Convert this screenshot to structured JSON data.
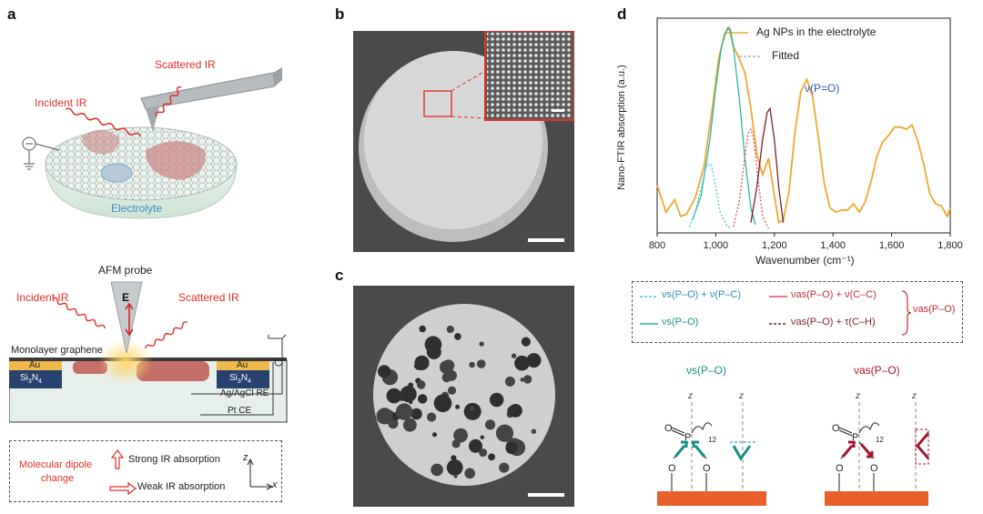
{
  "panels": {
    "a": "a",
    "b": "b",
    "c": "c",
    "d": "d"
  },
  "panel_a": {
    "top": {
      "scattered_ir": "Scattered IR",
      "incident_ir": "Incident IR",
      "electrolyte": "Electrolyte"
    },
    "bottom": {
      "afm_probe": "AFM probe",
      "e_field": "E",
      "incident_ir": "Incident IR",
      "scattered_ir": "Scattered IR",
      "graphene": "Monolayer graphene",
      "au_left": "Au",
      "au_right": "Au",
      "sin_left": "Si3N4",
      "sin_right": "Si3N4",
      "ref_electrode": "Ag/AgCl RE",
      "counter_electrode": "Pt CE"
    },
    "legend": {
      "dipole_label_line1": "Molecular dipole",
      "dipole_label_line2": "change",
      "strong": "Strong IR absorption",
      "weak": "Weak IR absorption",
      "axis_z": "z",
      "axis_x": "x"
    }
  },
  "panel_d": {
    "chart_data": {
      "type": "line",
      "xlabel": "Wavenumber (cm⁻¹)",
      "ylabel": "Nano-FTIR absorption (a.u.)",
      "xlim": [
        800,
        1800
      ],
      "xticks": [
        "800",
        "1,000",
        "1,200",
        "1,400",
        "1,600",
        "1,800"
      ],
      "legend": [
        "Ag NPs in the electrolyte",
        "Fitted"
      ],
      "peak_label": "ν(P=O)",
      "series": [
        {
          "name": "Ag NPs in the electrolyte",
          "color": "#f0a830",
          "x": [
            800,
            830,
            860,
            880,
            900,
            930,
            960,
            990,
            1010,
            1030,
            1045,
            1060,
            1080,
            1100,
            1120,
            1140,
            1160,
            1180,
            1200,
            1215,
            1230,
            1250,
            1270,
            1290,
            1310,
            1330,
            1350,
            1370,
            1390,
            1410,
            1430,
            1450,
            1470,
            1490,
            1510,
            1530,
            1550,
            1570,
            1590,
            1610,
            1630,
            1650,
            1670,
            1690,
            1710,
            1730,
            1750,
            1770,
            1790,
            1800
          ],
          "y": [
            0.23,
            0.1,
            0.16,
            0.08,
            0.09,
            0.17,
            0.32,
            0.62,
            0.84,
            0.96,
            0.99,
            0.9,
            0.84,
            0.77,
            0.6,
            0.38,
            0.28,
            0.36,
            0.18,
            0.05,
            0.06,
            0.2,
            0.48,
            0.68,
            0.74,
            0.66,
            0.46,
            0.24,
            0.12,
            0.1,
            0.11,
            0.11,
            0.14,
            0.1,
            0.15,
            0.25,
            0.37,
            0.44,
            0.47,
            0.51,
            0.51,
            0.5,
            0.52,
            0.44,
            0.33,
            0.19,
            0.14,
            0.13,
            0.08,
            0.12
          ]
        },
        {
          "name": "νs(P–O)",
          "color": "#2bb3a6",
          "x": [
            920,
            950,
            980,
            1000,
            1020,
            1040,
            1050,
            1060,
            1080,
            1100,
            1120,
            1135
          ],
          "y": [
            0.06,
            0.18,
            0.45,
            0.7,
            0.9,
            0.99,
            0.98,
            0.9,
            0.65,
            0.35,
            0.12,
            0.04
          ]
        },
        {
          "name": "νs(P–O) + ν(P–C)",
          "color": "#4fc3d6",
          "dashed": true,
          "x": [
            910,
            930,
            950,
            970,
            985,
            1000,
            1015,
            1035,
            1055
          ],
          "y": [
            0.03,
            0.1,
            0.22,
            0.33,
            0.33,
            0.22,
            0.1,
            0.04,
            0.02
          ]
        },
        {
          "name": "νas(P–O) + ν(C–C)",
          "color": "#e05060",
          "dashed": true,
          "x": [
            1060,
            1080,
            1095,
            1110,
            1120,
            1130,
            1145,
            1160,
            1180
          ],
          "y": [
            0.03,
            0.15,
            0.32,
            0.48,
            0.5,
            0.45,
            0.25,
            0.08,
            0.02
          ]
        },
        {
          "name": "νas(P–O) + τ(C–H)",
          "color": "#7a1f2b",
          "x": [
            1120,
            1140,
            1160,
            1175,
            1185,
            1200,
            1215,
            1230
          ],
          "y": [
            0.05,
            0.22,
            0.45,
            0.58,
            0.6,
            0.45,
            0.22,
            0.05
          ]
        }
      ]
    },
    "assign_legend": {
      "vs_pc": "νs(P–O) + ν(P–C)",
      "vas_cc": "νas(P–O) + ν(C–C)",
      "vs": "νs(P–O)",
      "vas_ch": "νas(P–O) + τ(C–H)",
      "vas_group": "νas(P–O)"
    },
    "mode_sym_title": "νs(P–O)",
    "mode_asym_title": "νas(P–O)"
  },
  "colors": {
    "ir_red": "#e0302a",
    "au": "#f0b94c",
    "sin": "#27426e",
    "substrate": "#e6efe9",
    "orange_sub": "#e8602c",
    "teal_arrow": "#1a8f84",
    "crimson_arrow": "#a3162e"
  }
}
